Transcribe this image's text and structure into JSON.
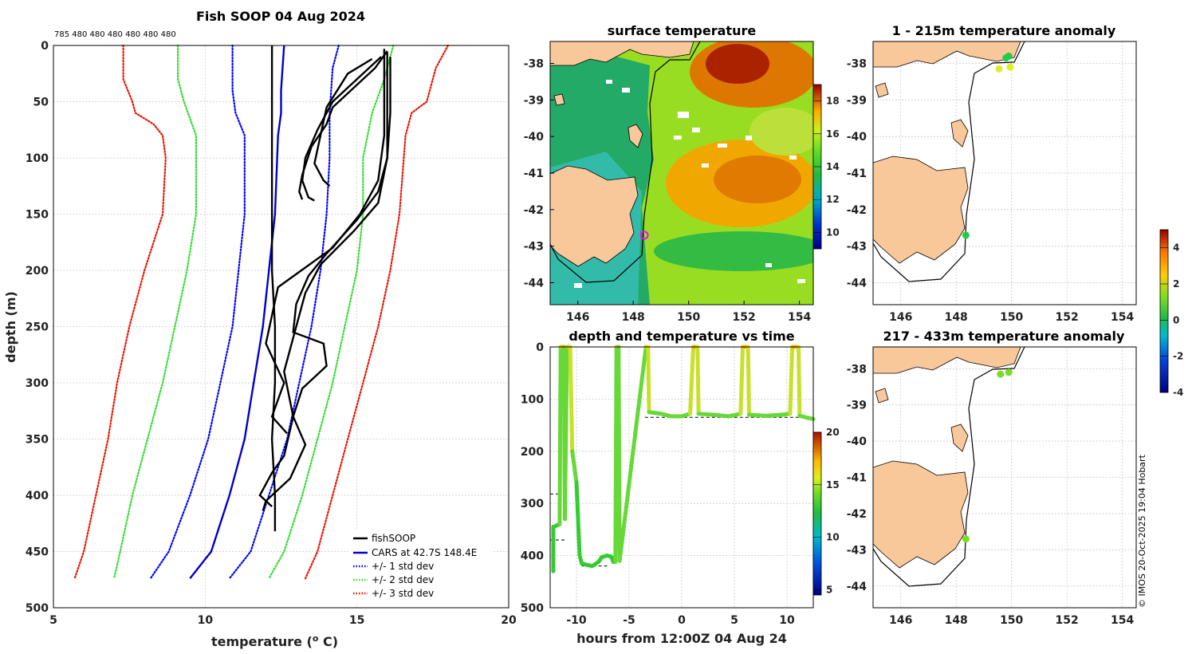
{
  "main_title": "Fish SOOP 04 Aug 2024",
  "top_counts": "785 480 480 480 480 480 480",
  "credit": "© IMOS 20-Oct-2025 19:04 Hobart",
  "colors": {
    "fish": "#000000",
    "cars": "#0000cc",
    "std1": "#0000ff",
    "std2": "#33dd33",
    "std3": "#ee1100",
    "land": "#f9c89a"
  },
  "chart_data": [
    {
      "id": "profile",
      "type": "line",
      "title": "Fish SOOP 04 Aug 2024",
      "xlabel": "temperature (",
      "xlabel_sup": "o",
      "xlabel_tail": " C)",
      "ylabel": "depth (m)",
      "xlim": [
        5,
        20
      ],
      "ylim": [
        0,
        500
      ],
      "xticks": [
        5,
        10,
        15,
        20
      ],
      "yticks": [
        0,
        50,
        100,
        150,
        200,
        250,
        300,
        350,
        400,
        450,
        500
      ],
      "legend": [
        "fishSOOP",
        "CARS at 42.7S 148.4E",
        "+/- 1 std dev",
        "+/- 2 std dev",
        "+/- 3 std dev"
      ],
      "series": [
        {
          "name": "CARS mean",
          "style": "solid",
          "color": "#0000cc",
          "points": [
            [
              12.6,
              0
            ],
            [
              12.5,
              40
            ],
            [
              12.5,
              60
            ],
            [
              12.4,
              80
            ],
            [
              12.3,
              150
            ],
            [
              12.1,
              200
            ],
            [
              11.9,
              250
            ],
            [
              11.6,
              300
            ],
            [
              11.3,
              350
            ],
            [
              10.8,
              400
            ],
            [
              10.2,
              450
            ],
            [
              9.5,
              474
            ]
          ]
        },
        {
          "name": "+1 std",
          "style": "dot",
          "color": "#0000ff",
          "points": [
            [
              14.4,
              0
            ],
            [
              14.2,
              20
            ],
            [
              14.1,
              60
            ],
            [
              14.1,
              100
            ],
            [
              14.0,
              150
            ],
            [
              13.8,
              200
            ],
            [
              13.5,
              250
            ],
            [
              13.1,
              300
            ],
            [
              12.7,
              350
            ],
            [
              12.1,
              400
            ],
            [
              11.5,
              450
            ],
            [
              10.8,
              474
            ]
          ]
        },
        {
          "name": "-1 std",
          "style": "dot",
          "color": "#0000ff",
          "points": [
            [
              10.9,
              0
            ],
            [
              10.9,
              40
            ],
            [
              11.0,
              60
            ],
            [
              11.3,
              80
            ],
            [
              11.3,
              150
            ],
            [
              11.1,
              200
            ],
            [
              10.9,
              250
            ],
            [
              10.5,
              300
            ],
            [
              10.1,
              350
            ],
            [
              9.5,
              400
            ],
            [
              8.8,
              450
            ],
            [
              8.2,
              474
            ]
          ]
        },
        {
          "name": "+2 std",
          "style": "dot",
          "color": "#33dd33",
          "points": [
            [
              16.2,
              0
            ],
            [
              15.9,
              30
            ],
            [
              15.5,
              60
            ],
            [
              15.2,
              100
            ],
            [
              15.2,
              150
            ],
            [
              15.0,
              200
            ],
            [
              14.6,
              250
            ],
            [
              14.2,
              300
            ],
            [
              13.7,
              350
            ],
            [
              13.2,
              400
            ],
            [
              12.6,
              450
            ],
            [
              12.1,
              474
            ]
          ]
        },
        {
          "name": "-2 std",
          "style": "dot",
          "color": "#33dd33",
          "points": [
            [
              9.1,
              0
            ],
            [
              9.1,
              30
            ],
            [
              9.3,
              50
            ],
            [
              9.5,
              65
            ],
            [
              9.7,
              80
            ],
            [
              9.7,
              150
            ],
            [
              9.4,
              200
            ],
            [
              9.0,
              250
            ],
            [
              8.6,
              300
            ],
            [
              8.1,
              350
            ],
            [
              7.6,
              400
            ],
            [
              7.2,
              450
            ],
            [
              7.0,
              474
            ]
          ]
        },
        {
          "name": "+3 std",
          "style": "dot",
          "color": "#ee1100",
          "points": [
            [
              18.0,
              0
            ],
            [
              17.6,
              20
            ],
            [
              17.3,
              50
            ],
            [
              16.8,
              60
            ],
            [
              16.6,
              80
            ],
            [
              16.4,
              150
            ],
            [
              16.1,
              200
            ],
            [
              15.7,
              250
            ],
            [
              15.2,
              300
            ],
            [
              14.7,
              350
            ],
            [
              14.2,
              400
            ],
            [
              13.7,
              450
            ],
            [
              13.3,
              474
            ]
          ]
        },
        {
          "name": "-3 std",
          "style": "dot",
          "color": "#ee1100",
          "points": [
            [
              7.3,
              0
            ],
            [
              7.3,
              30
            ],
            [
              7.6,
              50
            ],
            [
              7.7,
              60
            ],
            [
              8.3,
              70
            ],
            [
              8.6,
              80
            ],
            [
              8.7,
              100
            ],
            [
              8.6,
              150
            ],
            [
              8.0,
              200
            ],
            [
              7.5,
              250
            ],
            [
              7.1,
              300
            ],
            [
              6.8,
              350
            ],
            [
              6.4,
              400
            ],
            [
              6.0,
              450
            ],
            [
              5.7,
              474
            ]
          ]
        },
        {
          "name": "fishSOOP",
          "style": "solid",
          "color": "#000000",
          "points": [
            [
              12.2,
              0
            ],
            [
              12.2,
              50
            ],
            [
              12.2,
              100
            ],
            [
              12.2,
              150
            ],
            [
              12.2,
              200
            ],
            [
              12.3,
              250
            ],
            [
              12.3,
              300
            ],
            [
              12.2,
              350
            ],
            [
              12.3,
              400
            ],
            [
              12.3,
              432
            ]
          ]
        },
        {
          "name": "fishSOOP",
          "style": "solid",
          "color": "#000000",
          "points": [
            [
              16.0,
              5
            ],
            [
              15.6,
              20
            ],
            [
              14.8,
              40
            ],
            [
              14.2,
              55
            ],
            [
              14.0,
              70
            ],
            [
              13.5,
              90
            ],
            [
              13.2,
              115
            ],
            [
              13.1,
              130
            ],
            [
              13.2,
              137
            ]
          ]
        },
        {
          "name": "fishSOOP",
          "style": "solid",
          "color": "#000000",
          "points": [
            [
              15.8,
              10
            ],
            [
              15.0,
              30
            ],
            [
              14.2,
              50
            ],
            [
              13.7,
              75
            ],
            [
              13.3,
              100
            ],
            [
              13.2,
              120
            ],
            [
              13.4,
              135
            ],
            [
              13.6,
              138
            ]
          ]
        },
        {
          "name": "fishSOOP",
          "style": "solid",
          "color": "#000000",
          "points": [
            [
              15.5,
              12
            ],
            [
              14.7,
              25
            ],
            [
              14.0,
              55
            ],
            [
              13.8,
              80
            ],
            [
              13.6,
              105
            ],
            [
              13.9,
              120
            ],
            [
              14.1,
              125
            ]
          ]
        },
        {
          "name": "fishSOOP",
          "style": "solid",
          "color": "#000000",
          "points": [
            [
              15.9,
              3
            ],
            [
              15.9,
              40
            ],
            [
              15.9,
              80
            ],
            [
              15.7,
              120
            ],
            [
              15.1,
              150
            ],
            [
              14.2,
              180
            ],
            [
              12.4,
              215
            ],
            [
              12.0,
              265
            ],
            [
              12.6,
              300
            ],
            [
              12.2,
              330
            ],
            [
              12.7,
              345
            ]
          ]
        },
        {
          "name": "fishSOOP",
          "style": "solid",
          "color": "#000000",
          "points": [
            [
              16.0,
              6
            ],
            [
              16.0,
              50
            ],
            [
              16.0,
              100
            ],
            [
              15.7,
              130
            ],
            [
              15.0,
              155
            ],
            [
              14.0,
              185
            ],
            [
              13.4,
              205
            ],
            [
              13.0,
              230
            ],
            [
              12.9,
              255
            ],
            [
              13.9,
              265
            ],
            [
              14.0,
              285
            ],
            [
              13.2,
              305
            ],
            [
              12.9,
              330
            ],
            [
              12.6,
              365
            ],
            [
              12.2,
              380
            ],
            [
              11.8,
              400
            ],
            [
              12.2,
              410
            ]
          ]
        },
        {
          "name": "fishSOOP",
          "style": "solid",
          "color": "#000000",
          "points": [
            [
              16.1,
              10
            ],
            [
              16.1,
              60
            ],
            [
              16.0,
              100
            ],
            [
              15.7,
              140
            ],
            [
              14.9,
              165
            ],
            [
              13.8,
              195
            ],
            [
              13.3,
              220
            ],
            [
              13.0,
              250
            ],
            [
              12.6,
              290
            ],
            [
              12.9,
              330
            ],
            [
              13.3,
              355
            ],
            [
              12.8,
              385
            ],
            [
              12.0,
              405
            ],
            [
              11.9,
              414
            ]
          ]
        }
      ]
    },
    {
      "id": "sst",
      "type": "heatmap",
      "title": "surface temperature",
      "xlim": [
        145,
        154.5
      ],
      "ylim": [
        -44.6,
        -37.4
      ],
      "xticks": [
        146,
        148,
        150,
        152,
        154
      ],
      "yticks": [
        -38,
        -39,
        -40,
        -41,
        -42,
        -43,
        -44
      ],
      "clim": [
        9,
        19
      ],
      "cticks": [
        10,
        12,
        14,
        16,
        18
      ],
      "marker": {
        "lon": 148.4,
        "lat": -42.7
      }
    },
    {
      "id": "timeseries",
      "type": "line",
      "title": "depth and temperature vs time",
      "xlabel": "hours from 12:00Z 04 Aug 24",
      "xlim": [
        -12.5,
        12.5
      ],
      "ylim": [
        0,
        500
      ],
      "xticks": [
        -10,
        -5,
        0,
        5,
        10
      ],
      "yticks": [
        0,
        100,
        200,
        300,
        400,
        500
      ],
      "clim": [
        4.5,
        20
      ],
      "cticks": [
        5,
        10,
        15,
        20
      ],
      "track": [
        [
          -12.2,
          430
        ],
        [
          -12.2,
          345
        ],
        [
          -11.6,
          340
        ],
        [
          -11.5,
          0
        ],
        [
          -11.2,
          0
        ],
        [
          -11.1,
          330
        ],
        [
          -10.9,
          0
        ],
        [
          -10.6,
          0
        ],
        [
          -10.4,
          200
        ],
        [
          -10.0,
          260
        ],
        [
          -9.7,
          400
        ],
        [
          -9.5,
          415
        ],
        [
          -9.0,
          418
        ],
        [
          -8.5,
          420
        ],
        [
          -7.9,
          412
        ],
        [
          -7.6,
          403
        ],
        [
          -7.1,
          400
        ],
        [
          -6.7,
          402
        ],
        [
          -6.5,
          412
        ],
        [
          -6.3,
          412
        ],
        [
          -6.2,
          0
        ],
        [
          -6.0,
          0
        ],
        [
          -5.9,
          410
        ],
        [
          -3.4,
          0
        ],
        [
          -3.2,
          0
        ],
        [
          -3.1,
          125
        ],
        [
          -2.0,
          128
        ],
        [
          -1.0,
          133
        ],
        [
          0.0,
          133
        ],
        [
          0.8,
          128
        ],
        [
          1.1,
          0
        ],
        [
          1.5,
          0
        ],
        [
          1.6,
          128
        ],
        [
          3.0,
          130
        ],
        [
          4.5,
          133
        ],
        [
          5.6,
          128
        ],
        [
          5.8,
          0
        ],
        [
          6.3,
          0
        ],
        [
          6.4,
          130
        ],
        [
          8.0,
          132
        ],
        [
          9.5,
          130
        ],
        [
          10.3,
          128
        ],
        [
          10.5,
          0
        ],
        [
          11.1,
          0
        ],
        [
          11.2,
          132
        ],
        [
          12.0,
          136
        ],
        [
          12.5,
          138
        ]
      ],
      "bottom_marks": [
        [
          -12.5,
          282
        ],
        [
          -12.5,
          370
        ],
        [
          -9.5,
          420
        ],
        [
          -7.0,
          420
        ],
        [
          -3.5,
          135
        ],
        [
          12.5,
          135
        ]
      ]
    },
    {
      "id": "anom_shallow",
      "type": "scatter",
      "title": "1 - 215m temperature anomaly",
      "xlim": [
        145,
        154.5
      ],
      "ylim": [
        -44.6,
        -37.4
      ],
      "xticks": [
        146,
        148,
        150,
        152,
        154
      ],
      "yticks": [
        -38,
        -39,
        -40,
        -41,
        -42,
        -43,
        -44
      ],
      "points": [
        {
          "lon": 149.8,
          "lat": -37.85,
          "anom": 0.6
        },
        {
          "lon": 149.9,
          "lat": -37.8,
          "anom": 0.8
        },
        {
          "lon": 149.55,
          "lat": -38.15,
          "anom": 1.8
        },
        {
          "lon": 149.95,
          "lat": -38.1,
          "anom": 1.9
        },
        {
          "lon": 148.35,
          "lat": -42.7,
          "anom": 0.4
        }
      ]
    },
    {
      "id": "anom_deep",
      "type": "scatter",
      "title": "217 - 433m temperature anomaly",
      "xlim": [
        145,
        154.5
      ],
      "ylim": [
        -44.6,
        -37.4
      ],
      "xticks": [
        146,
        148,
        150,
        152,
        154
      ],
      "yticks": [
        -38,
        -39,
        -40,
        -41,
        -42,
        -43,
        -44
      ],
      "clim": [
        -4,
        5
      ],
      "cticks": [
        4,
        2,
        0,
        -2,
        -4
      ],
      "points": [
        {
          "lon": 149.6,
          "lat": -38.15,
          "anom": 1.0
        },
        {
          "lon": 149.9,
          "lat": -38.1,
          "anom": 1.2
        },
        {
          "lon": 148.35,
          "lat": -42.7,
          "anom": 1.1
        }
      ]
    }
  ]
}
